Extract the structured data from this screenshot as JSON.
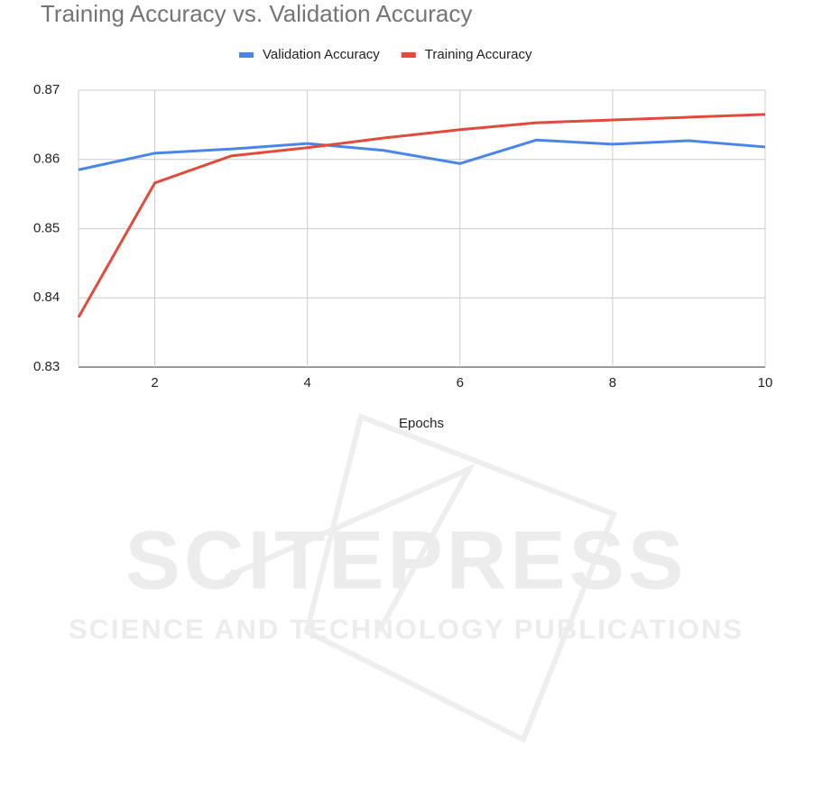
{
  "chart_data": {
    "type": "line",
    "title": "Training Accuracy vs. Validation Accuracy",
    "x_label": "Epochs",
    "x": [
      1,
      2,
      3,
      4,
      5,
      6,
      7,
      8,
      9,
      10
    ],
    "series": [
      {
        "name": "Validation Accuracy",
        "color": "#4a86e8",
        "values": [
          0.8585,
          0.8609,
          0.8615,
          0.8623,
          0.8613,
          0.8594,
          0.8628,
          0.8622,
          0.8627,
          0.8618
        ]
      },
      {
        "name": "Training Accuracy",
        "color": "#e24a3b",
        "values": [
          0.8372,
          0.8566,
          0.8605,
          0.8617,
          0.8631,
          0.8643,
          0.8653,
          0.8657,
          0.8661,
          0.8665
        ]
      }
    ],
    "xlim": [
      1,
      10
    ],
    "xticks": [
      2,
      4,
      6,
      8,
      10
    ],
    "ylim": [
      0.83,
      0.87
    ],
    "yticks": [
      0.83,
      0.84,
      0.85,
      0.86,
      0.87
    ],
    "grid": true,
    "legend": "top",
    "annotations": [
      "SCITEPRESS",
      "SCIENCE AND TECHNOLOGY PUBLICATIONS"
    ]
  }
}
